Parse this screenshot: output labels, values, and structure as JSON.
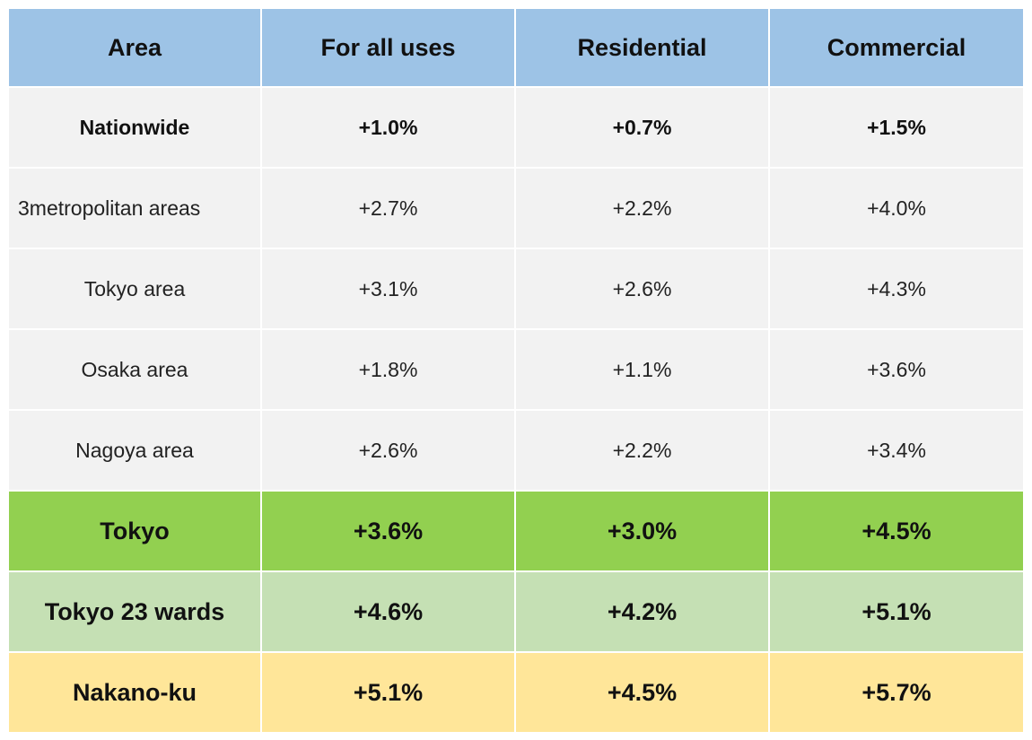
{
  "chart_data": {
    "type": "table",
    "columns": [
      "Area",
      "For all uses",
      "Residential",
      "Commercial"
    ],
    "rows": [
      {
        "area": "Nationwide",
        "all": "+1.0%",
        "residential": "+0.7%",
        "commercial": "+1.5%"
      },
      {
        "area": "3metropolitan areas",
        "all": "+2.7%",
        "residential": "+2.2%",
        "commercial": "+4.0%"
      },
      {
        "area": "Tokyo area",
        "all": "+3.1%",
        "residential": "+2.6%",
        "commercial": "+4.3%"
      },
      {
        "area": "Osaka area",
        "all": "+1.8%",
        "residential": "+1.1%",
        "commercial": "+3.6%"
      },
      {
        "area": "Nagoya area",
        "all": "+2.6%",
        "residential": "+2.2%",
        "commercial": "+3.4%"
      },
      {
        "area": "Tokyo",
        "all": "+3.6%",
        "residential": "+3.0%",
        "commercial": "+4.5%"
      },
      {
        "area": "Tokyo 23 wards",
        "all": "+4.6%",
        "residential": "+4.2%",
        "commercial": "+5.1%"
      },
      {
        "area": "Nakano-ku",
        "all": "+5.1%",
        "residential": "+4.5%",
        "commercial": "+5.7%"
      }
    ]
  },
  "colors": {
    "header": "#9dc3e6",
    "grey_rows": "#f2f2f2",
    "tokyo_row": "#92d050",
    "tokyo23_row": "#c5e0b4",
    "nakano_row": "#ffe699"
  }
}
